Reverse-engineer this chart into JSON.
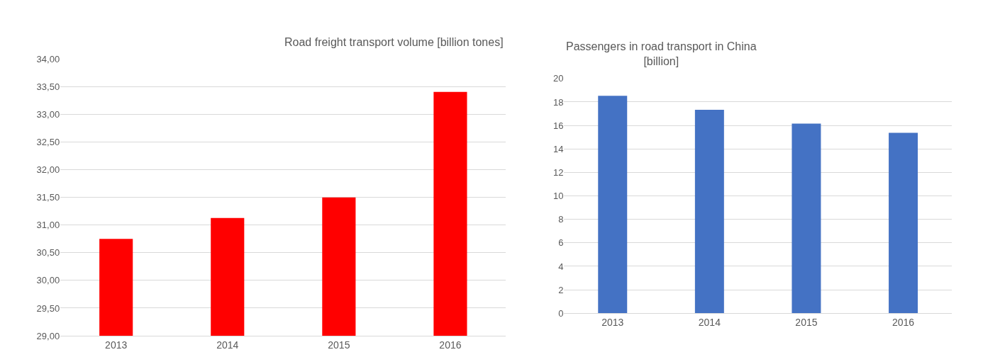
{
  "chart_data": [
    {
      "type": "bar",
      "title": "Road freight transport volume [billion tones]",
      "categories": [
        "2013",
        "2014",
        "2015",
        "2016"
      ],
      "values": [
        30.75,
        31.13,
        31.5,
        33.41
      ],
      "color": "#ff0000",
      "ylim": [
        29,
        34
      ],
      "yticks": [
        {
          "value": 29,
          "label": "29,00"
        },
        {
          "value": 29.5,
          "label": "29,50"
        },
        {
          "value": 30,
          "label": "30,00"
        },
        {
          "value": 30.5,
          "label": "30,50"
        },
        {
          "value": 31,
          "label": "31,00"
        },
        {
          "value": 31.5,
          "label": "31,50"
        },
        {
          "value": 32,
          "label": "32,00"
        },
        {
          "value": 32.5,
          "label": "32,50"
        },
        {
          "value": 33,
          "label": "33,00"
        },
        {
          "value": 33.5,
          "label": "33,50"
        },
        {
          "value": 34,
          "label": "34,00"
        }
      ],
      "grid": "y"
    },
    {
      "type": "bar",
      "title": "Passengers in road transport in China\n[billion]",
      "categories": [
        "2013",
        "2014",
        "2015",
        "2016"
      ],
      "values": [
        18.53,
        17.34,
        16.15,
        15.37
      ],
      "color": "#4472c4",
      "ylim": [
        0,
        20
      ],
      "yticks": [
        0,
        2,
        4,
        6,
        8,
        10,
        12,
        14,
        16,
        18,
        20
      ],
      "grid": "y"
    }
  ]
}
